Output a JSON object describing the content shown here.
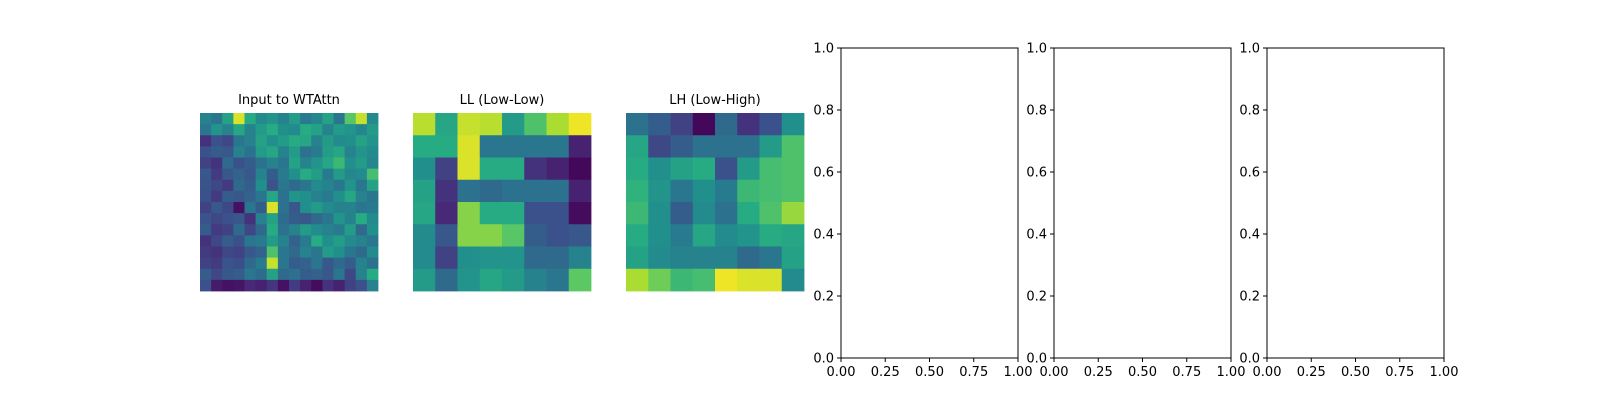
{
  "chart_data": [
    {
      "type": "heatmap",
      "title": "Input to WTAttn",
      "colormap": "viridis",
      "axes_visible": false,
      "rows": 16,
      "cols": 16,
      "values": [
        [
          0.45,
          0.4,
          0.58,
          0.95,
          0.62,
          0.48,
          0.52,
          0.45,
          0.55,
          0.42,
          0.46,
          0.58,
          0.4,
          0.74,
          0.92,
          0.48
        ],
        [
          0.4,
          0.52,
          0.45,
          0.6,
          0.45,
          0.55,
          0.62,
          0.5,
          0.48,
          0.62,
          0.58,
          0.45,
          0.55,
          0.52,
          0.46,
          0.55
        ],
        [
          0.15,
          0.25,
          0.22,
          0.4,
          0.44,
          0.58,
          0.5,
          0.55,
          0.62,
          0.6,
          0.45,
          0.55,
          0.48,
          0.5,
          0.58,
          0.52
        ],
        [
          0.25,
          0.3,
          0.28,
          0.45,
          0.38,
          0.55,
          0.6,
          0.45,
          0.55,
          0.38,
          0.42,
          0.56,
          0.6,
          0.44,
          0.52,
          0.48
        ],
        [
          0.2,
          0.15,
          0.35,
          0.25,
          0.3,
          0.38,
          0.45,
          0.4,
          0.58,
          0.45,
          0.52,
          0.6,
          0.68,
          0.5,
          0.55,
          0.46
        ],
        [
          0.28,
          0.18,
          0.28,
          0.32,
          0.28,
          0.45,
          0.3,
          0.42,
          0.5,
          0.62,
          0.56,
          0.42,
          0.55,
          0.46,
          0.48,
          0.7
        ],
        [
          0.26,
          0.22,
          0.18,
          0.35,
          0.3,
          0.5,
          0.26,
          0.4,
          0.35,
          0.4,
          0.48,
          0.45,
          0.4,
          0.52,
          0.4,
          0.58
        ],
        [
          0.25,
          0.18,
          0.3,
          0.28,
          0.32,
          0.4,
          0.6,
          0.38,
          0.52,
          0.5,
          0.45,
          0.42,
          0.5,
          0.6,
          0.45,
          0.4
        ],
        [
          0.2,
          0.28,
          0.22,
          0.05,
          0.4,
          0.3,
          0.95,
          0.38,
          0.28,
          0.5,
          0.55,
          0.48,
          0.45,
          0.45,
          0.4,
          0.42
        ],
        [
          0.26,
          0.22,
          0.25,
          0.28,
          0.15,
          0.44,
          0.58,
          0.36,
          0.3,
          0.28,
          0.35,
          0.4,
          0.52,
          0.45,
          0.62,
          0.48
        ],
        [
          0.3,
          0.18,
          0.2,
          0.35,
          0.22,
          0.35,
          0.62,
          0.38,
          0.45,
          0.55,
          0.48,
          0.45,
          0.42,
          0.55,
          0.35,
          0.5
        ],
        [
          0.15,
          0.22,
          0.3,
          0.25,
          0.4,
          0.42,
          0.55,
          0.45,
          0.32,
          0.42,
          0.62,
          0.5,
          0.56,
          0.48,
          0.45,
          0.4
        ],
        [
          0.18,
          0.15,
          0.22,
          0.2,
          0.28,
          0.32,
          0.72,
          0.4,
          0.35,
          0.45,
          0.4,
          0.55,
          0.5,
          0.4,
          0.35,
          0.48
        ],
        [
          0.2,
          0.18,
          0.26,
          0.24,
          0.35,
          0.42,
          0.92,
          0.4,
          0.3,
          0.32,
          0.4,
          0.28,
          0.35,
          0.3,
          0.45,
          0.38
        ],
        [
          0.3,
          0.22,
          0.28,
          0.3,
          0.4,
          0.36,
          0.58,
          0.35,
          0.38,
          0.3,
          0.32,
          0.28,
          0.4,
          0.22,
          0.45,
          0.62
        ],
        [
          0.25,
          0.08,
          0.05,
          0.06,
          0.12,
          0.1,
          0.16,
          0.05,
          0.18,
          0.1,
          0.03,
          0.15,
          0.1,
          0.2,
          0.25,
          0.45
        ]
      ]
    },
    {
      "type": "heatmap",
      "title": "LL (Low-Low)",
      "colormap": "viridis",
      "axes_visible": false,
      "rows": 8,
      "cols": 8,
      "values": [
        [
          0.9,
          0.6,
          0.92,
          0.9,
          0.55,
          0.72,
          0.88,
          0.98
        ],
        [
          0.62,
          0.62,
          0.95,
          0.4,
          0.4,
          0.4,
          0.4,
          0.1
        ],
        [
          0.5,
          0.2,
          0.95,
          0.62,
          0.62,
          0.15,
          0.1,
          0.02
        ],
        [
          0.58,
          0.15,
          0.38,
          0.35,
          0.38,
          0.38,
          0.38,
          0.1
        ],
        [
          0.6,
          0.12,
          0.82,
          0.62,
          0.62,
          0.25,
          0.25,
          0.03
        ],
        [
          0.48,
          0.28,
          0.82,
          0.82,
          0.74,
          0.3,
          0.25,
          0.28
        ],
        [
          0.48,
          0.2,
          0.5,
          0.52,
          0.52,
          0.35,
          0.35,
          0.45
        ],
        [
          0.55,
          0.35,
          0.52,
          0.6,
          0.55,
          0.45,
          0.4,
          0.75
        ]
      ]
    },
    {
      "type": "heatmap",
      "title": "LH (Low-High)",
      "colormap": "viridis",
      "axes_visible": false,
      "rows": 8,
      "cols": 8,
      "values": [
        [
          0.38,
          0.3,
          0.2,
          0.02,
          0.35,
          0.15,
          0.25,
          0.5
        ],
        [
          0.6,
          0.22,
          0.3,
          0.38,
          0.38,
          0.38,
          0.55,
          0.72
        ],
        [
          0.62,
          0.5,
          0.58,
          0.62,
          0.25,
          0.55,
          0.7,
          0.72
        ],
        [
          0.65,
          0.52,
          0.4,
          0.5,
          0.42,
          0.68,
          0.7,
          0.72
        ],
        [
          0.68,
          0.5,
          0.3,
          0.48,
          0.38,
          0.62,
          0.72,
          0.85
        ],
        [
          0.62,
          0.5,
          0.42,
          0.6,
          0.48,
          0.52,
          0.62,
          0.6
        ],
        [
          0.58,
          0.48,
          0.45,
          0.45,
          0.45,
          0.35,
          0.4,
          0.58
        ],
        [
          0.88,
          0.78,
          0.68,
          0.7,
          0.98,
          0.95,
          0.95,
          0.48
        ]
      ]
    },
    {
      "type": "line",
      "series": [],
      "xlim": [
        0.0,
        1.0
      ],
      "ylim": [
        0.0,
        1.0
      ],
      "xticks": [
        "0.00",
        "0.25",
        "0.50",
        "0.75",
        "1.00"
      ],
      "yticks": [
        "0.0",
        "0.2",
        "0.4",
        "0.6",
        "0.8",
        "1.0"
      ],
      "grid": false
    },
    {
      "type": "line",
      "series": [],
      "xlim": [
        0.0,
        1.0
      ],
      "ylim": [
        0.0,
        1.0
      ],
      "xticks": [
        "0.00",
        "0.25",
        "0.50",
        "0.75",
        "1.00"
      ],
      "yticks": [
        "0.0",
        "0.2",
        "0.4",
        "0.6",
        "0.8",
        "1.0"
      ],
      "grid": false
    },
    {
      "type": "line",
      "series": [],
      "xlim": [
        0.0,
        1.0
      ],
      "ylim": [
        0.0,
        1.0
      ],
      "xticks": [
        "0.00",
        "0.25",
        "0.50",
        "0.75",
        "1.00"
      ],
      "yticks": [
        "0.0",
        "0.2",
        "0.4",
        "0.6",
        "0.8",
        "1.0"
      ],
      "grid": false
    }
  ]
}
